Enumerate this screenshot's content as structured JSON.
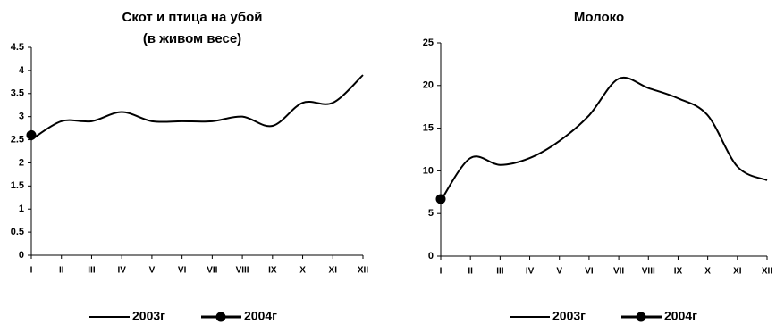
{
  "chart_data": [
    {
      "type": "line",
      "title": "Скот и птица на убой",
      "subtitle": "(в живом весе)",
      "categories": [
        "I",
        "II",
        "III",
        "IV",
        "V",
        "VI",
        "VII",
        "VIII",
        "IX",
        "X",
        "XI",
        "XII"
      ],
      "series": [
        {
          "name": "2003г",
          "color": "#000000",
          "values": [
            2.5,
            2.9,
            2.9,
            3.1,
            2.9,
            2.9,
            2.9,
            3.0,
            2.8,
            3.3,
            3.3,
            3.9
          ]
        },
        {
          "name": "2004г",
          "color": "#000000",
          "values": [
            2.6,
            null,
            null,
            null,
            null,
            null,
            null,
            null,
            null,
            null,
            null,
            null
          ]
        }
      ],
      "ylim": [
        0,
        4.5
      ],
      "yticks": [
        0,
        0.5,
        1,
        1.5,
        2,
        2.5,
        3,
        3.5,
        4,
        4.5
      ]
    },
    {
      "type": "line",
      "title": "Молоко",
      "categories": [
        "I",
        "II",
        "III",
        "IV",
        "V",
        "VI",
        "VII",
        "VIII",
        "IX",
        "X",
        "XI",
        "XII"
      ],
      "series": [
        {
          "name": "2003г",
          "color": "#000000",
          "values": [
            6.5,
            11.5,
            10.7,
            11.5,
            13.5,
            16.5,
            20.8,
            19.7,
            18.5,
            16.5,
            10.5,
            8.9
          ]
        },
        {
          "name": "2004г",
          "color": "#000000",
          "values": [
            6.7,
            null,
            null,
            null,
            null,
            null,
            null,
            null,
            null,
            null,
            null,
            null
          ]
        }
      ],
      "ylim": [
        0,
        25
      ],
      "yticks": [
        0,
        5,
        10,
        15,
        20,
        25
      ]
    }
  ]
}
